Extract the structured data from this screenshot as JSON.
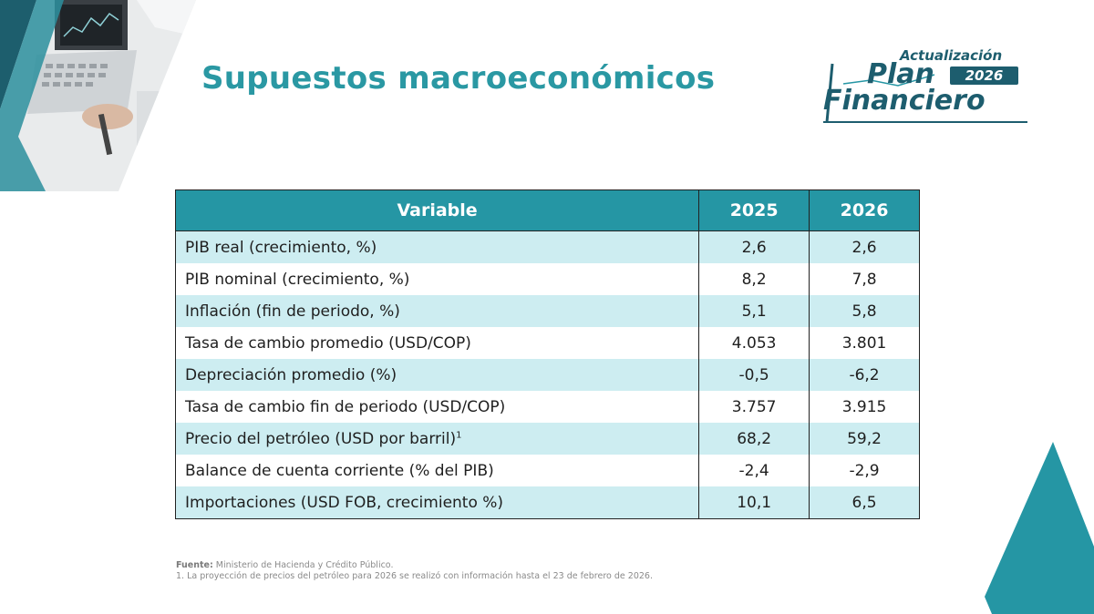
{
  "title": "Supuestos macroeconómicos",
  "logo": {
    "line1": "Actualización",
    "plan": "Plan",
    "year": "2026",
    "financiero": "Financiero"
  },
  "table": {
    "headers": [
      "Variable",
      "2025",
      "2026"
    ],
    "rows": [
      {
        "variable": "PIB real (crecimiento, %)",
        "y2025": "2,6",
        "y2026": "2,6"
      },
      {
        "variable": "PIB nominal (crecimiento, %)",
        "y2025": "8,2",
        "y2026": "7,8"
      },
      {
        "variable": "Inflación (fin de periodo, %)",
        "y2025": "5,1",
        "y2026": "5,8"
      },
      {
        "variable": "Tasa de cambio promedio (USD/COP)",
        "y2025": "4.053",
        "y2026": "3.801"
      },
      {
        "variable": "Depreciación promedio (%)",
        "y2025": "-0,5",
        "y2026": "-6,2"
      },
      {
        "variable": "Tasa de cambio fin de periodo (USD/COP)",
        "y2025": "3.757",
        "y2026": "3.915"
      },
      {
        "variable": "Precio del petróleo (USD por barril)",
        "sup": "1",
        "y2025": "68,2",
        "y2026": "59,2"
      },
      {
        "variable": "Balance de cuenta corriente (% del PIB)",
        "y2025": "-2,4",
        "y2026": "-2,9"
      },
      {
        "variable": "Importaciones (USD FOB, crecimiento %)",
        "y2025": "10,1",
        "y2026": "6,5"
      }
    ]
  },
  "footer": {
    "source_label": "Fuente:",
    "source_text": " Ministerio de Hacienda y Crédito Público.",
    "note": "1. La proyección de precios del petróleo para 2026 se realizó con información hasta el 23 de febrero de 2026."
  },
  "colors": {
    "accent": "#2596a4",
    "title": "#2a98a3",
    "logo": "#1d5d6e",
    "row_alt": "#cdedf1"
  },
  "icons": [
    "laptop-photo-corner",
    "teal-triangle-corner"
  ]
}
